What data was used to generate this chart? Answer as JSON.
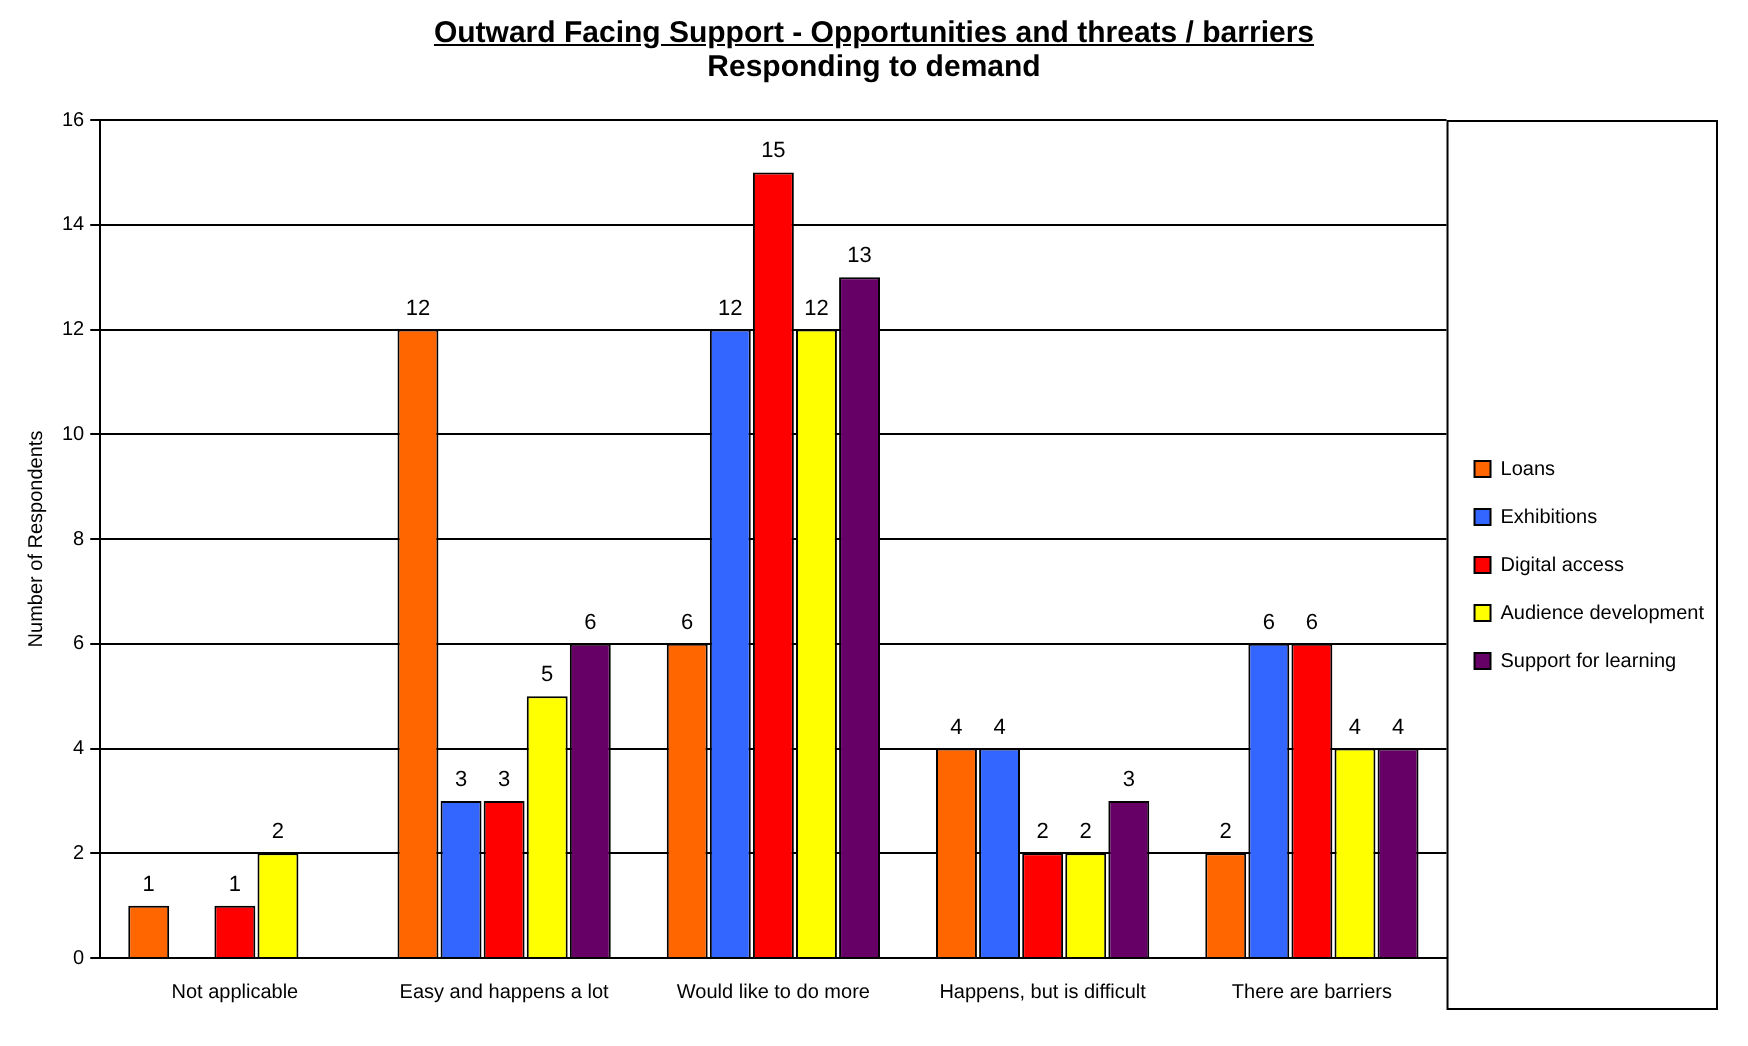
{
  "chart_data": {
    "type": "bar",
    "title": "Outward Facing Support - Opportunities and threats / barriers",
    "subtitle": "Responding to demand",
    "ylabel": "Number of Respondents",
    "categories": [
      "Not applicable",
      "Easy and happens a lot",
      "Would like to do more",
      "Happens, but is difficult",
      "There are barriers"
    ],
    "series": [
      {
        "name": "Loans",
        "color": "#ff6600",
        "values": [
          1,
          12,
          6,
          4,
          2
        ]
      },
      {
        "name": "Exhibitions",
        "color": "#3366ff",
        "values": [
          null,
          3,
          12,
          4,
          6
        ]
      },
      {
        "name": "Digital access",
        "color": "#ff0000",
        "values": [
          1,
          3,
          15,
          2,
          6
        ]
      },
      {
        "name": "Audience development",
        "color": "#ffff00",
        "values": [
          2,
          5,
          12,
          2,
          4
        ]
      },
      {
        "name": "Support for learning",
        "color": "#660066",
        "values": [
          null,
          6,
          13,
          3,
          4
        ]
      }
    ],
    "ylim": [
      0,
      16
    ],
    "yticks": [
      0,
      2,
      4,
      6,
      8,
      10,
      12,
      14,
      16
    ],
    "grid": "y",
    "legend": "right",
    "data_labels": true
  }
}
